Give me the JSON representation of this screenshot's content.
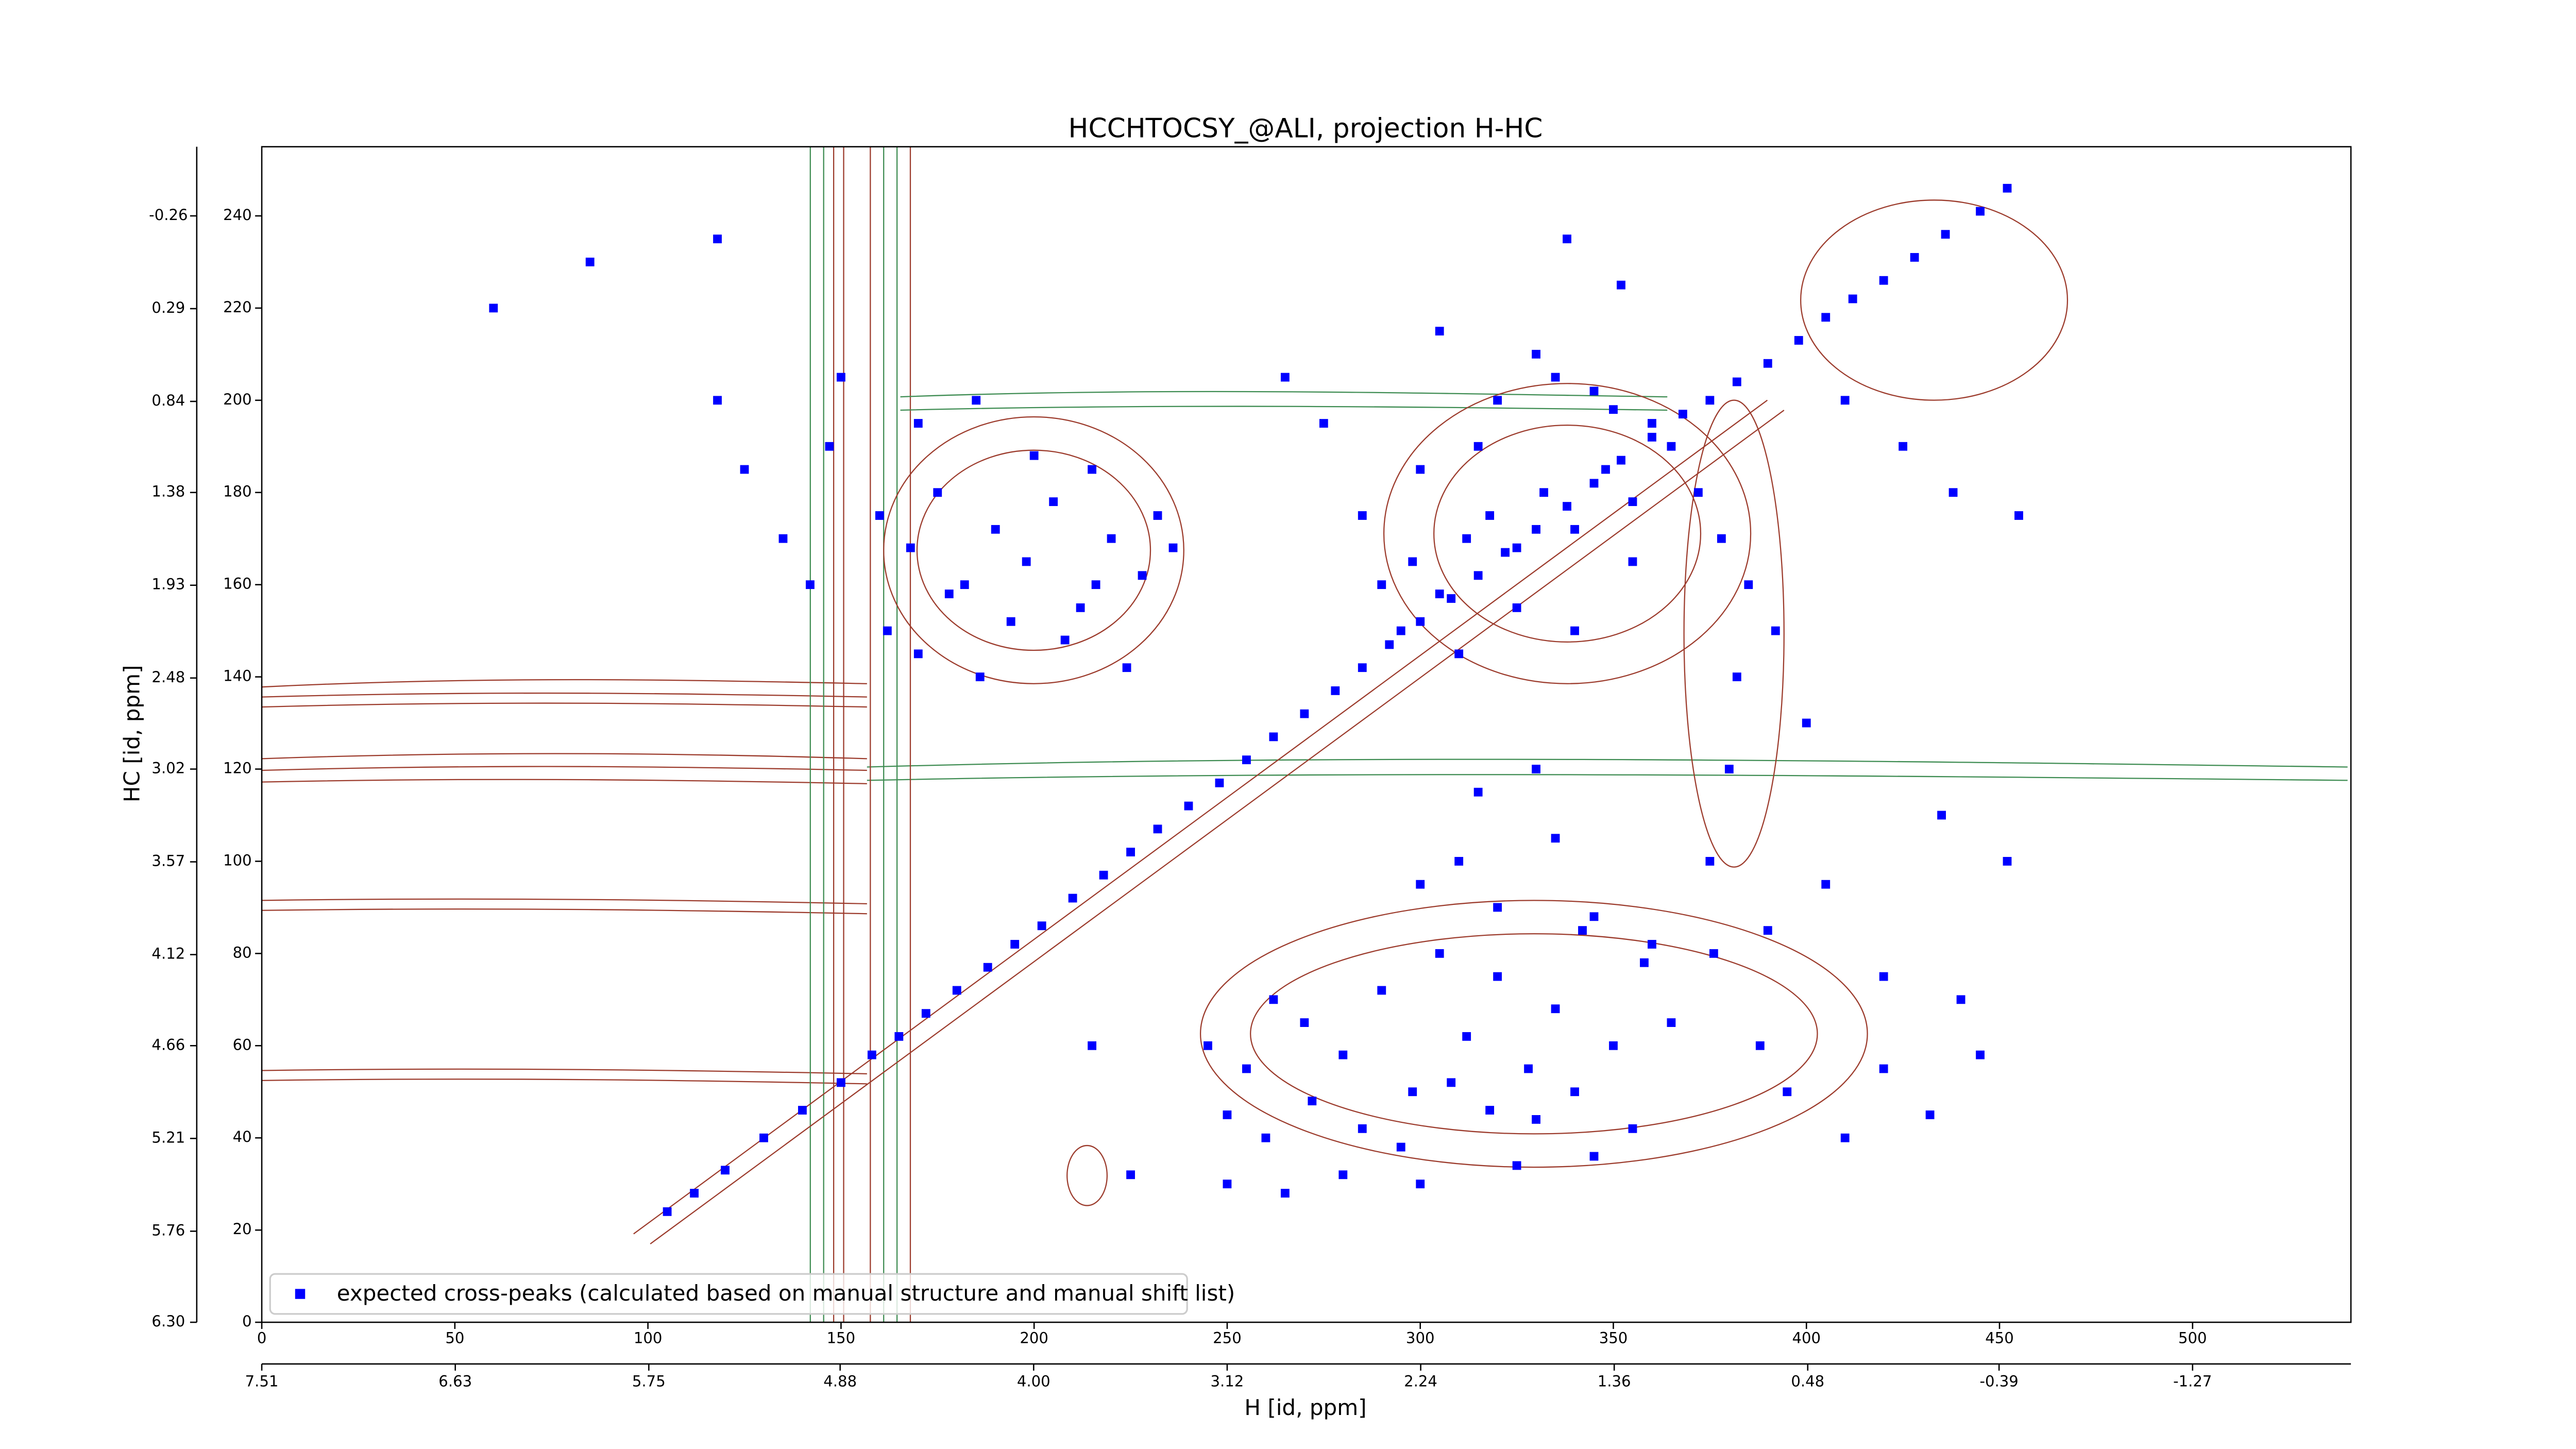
{
  "chart_data": {
    "type": "scatter",
    "title": "HCCHTOCSY_@ALI, projection H-HC",
    "x_label": "H [id, ppm]",
    "y_label": "HC [id, ppm]",
    "xlim": [
      0,
      541
    ],
    "ylim": [
      0,
      255
    ],
    "xticks": [
      0,
      50,
      100,
      150,
      200,
      250,
      300,
      350,
      400,
      450,
      500
    ],
    "yticks": [
      0,
      20,
      40,
      60,
      80,
      100,
      120,
      140,
      160,
      180,
      200,
      220,
      240
    ],
    "x2lim": [
      7.51,
      -1.99
    ],
    "x2ticks": [
      7.51,
      6.63,
      5.75,
      4.88,
      {
        "value": 4.0,
        "label": "4.00"
      },
      3.12,
      2.24,
      1.36,
      0.48,
      -0.39,
      -1.27
    ],
    "y2lim": [
      6.3,
      -0.67
    ],
    "y2ticks": [
      {
        "value": 6.3,
        "label": "6.30"
      },
      5.76,
      5.21,
      4.66,
      4.12,
      3.57,
      3.02,
      2.48,
      1.93,
      1.38,
      0.84,
      0.29,
      -0.26
    ],
    "legend": "lower left",
    "series": [
      {
        "name": "expected cross-peaks (calculated based on manual structure and manual shift list)",
        "color": "#0000ff",
        "x": [
          105,
          112,
          120,
          130,
          140,
          150,
          158,
          165,
          172,
          180,
          188,
          195,
          202,
          210,
          218,
          225,
          232,
          240,
          248,
          255,
          262,
          270,
          278,
          285,
          292,
          300,
          308,
          315,
          322,
          330,
          338,
          345,
          352,
          360,
          368,
          375,
          382,
          390,
          398,
          405,
          412,
          420,
          428,
          436,
          445,
          452,
          118,
          125,
          135,
          147,
          160,
          168,
          175,
          182,
          190,
          198,
          205,
          212,
          220,
          228,
          236,
          162,
          170,
          178,
          186,
          194,
          208,
          216,
          224,
          232,
          150,
          142,
          170,
          185,
          200,
          215,
          245,
          255,
          262,
          270,
          280,
          290,
          298,
          305,
          312,
          320,
          328,
          335,
          342,
          350,
          358,
          365,
          250,
          260,
          272,
          285,
          295,
          308,
          318,
          330,
          340,
          355,
          300,
          310,
          320,
          335,
          345,
          360,
          250,
          265,
          280,
          300,
          325,
          345,
          315,
          330,
          290,
          298,
          305,
          312,
          318,
          325,
          332,
          340,
          348,
          355,
          360,
          365,
          295,
          310,
          325,
          340,
          355,
          320,
          335,
          350,
          300,
          315,
          330,
          345,
          285,
          275,
          265,
          305,
          338,
          352,
          372,
          378,
          385,
          392,
          380,
          375,
          388,
          395,
          410,
          420,
          432,
          445,
          452,
          435,
          400,
          382,
          376,
          390,
          405,
          420,
          440,
          410,
          425,
          438,
          455,
          60,
          85,
          118,
          215,
          225
        ],
        "y": [
          24,
          28,
          33,
          40,
          46,
          52,
          58,
          62,
          67,
          72,
          77,
          82,
          86,
          92,
          97,
          102,
          107,
          112,
          117,
          122,
          127,
          132,
          137,
          142,
          147,
          152,
          157,
          162,
          167,
          172,
          177,
          182,
          187,
          192,
          197,
          200,
          204,
          208,
          213,
          218,
          222,
          226,
          231,
          236,
          241,
          246,
          200,
          185,
          170,
          190,
          175,
          168,
          180,
          160,
          172,
          165,
          178,
          155,
          170,
          162,
          168,
          150,
          145,
          158,
          140,
          152,
          148,
          160,
          142,
          175,
          205,
          160,
          195,
          200,
          188,
          185,
          60,
          55,
          70,
          65,
          58,
          72,
          50,
          80,
          62,
          75,
          55,
          68,
          85,
          60,
          78,
          65,
          45,
          40,
          48,
          42,
          38,
          52,
          46,
          44,
          50,
          42,
          95,
          100,
          90,
          105,
          88,
          82,
          30,
          28,
          32,
          30,
          34,
          36,
          115,
          120,
          160,
          165,
          158,
          170,
          175,
          168,
          180,
          172,
          185,
          178,
          195,
          190,
          150,
          145,
          155,
          150,
          165,
          200,
          205,
          198,
          185,
          190,
          210,
          202,
          175,
          195,
          205,
          215,
          235,
          225,
          180,
          170,
          160,
          150,
          120,
          100,
          60,
          50,
          40,
          55,
          45,
          58,
          100,
          110,
          130,
          140,
          80,
          85,
          95,
          75,
          70,
          200,
          190,
          180,
          175,
          220,
          230,
          235,
          60,
          32
        ]
      }
    ]
  }
}
